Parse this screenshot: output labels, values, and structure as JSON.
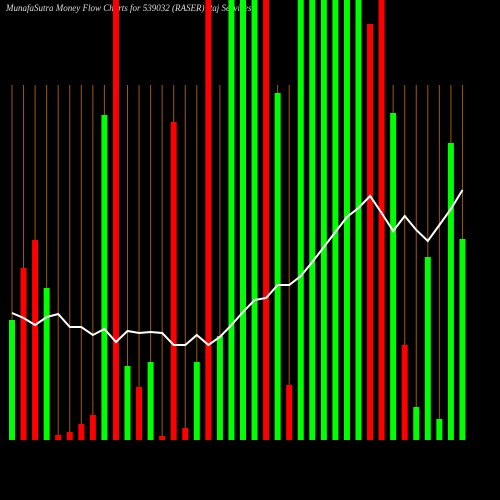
{
  "chart_data": {
    "type": "bar-line",
    "title": "MunafaSutra  Money Flow  Charts for 539032  (RASER) Raj Services",
    "ylim": [
      0,
      440
    ],
    "bar_values": [
      120,
      172,
      200,
      152,
      5,
      8,
      16,
      25,
      325,
      440,
      74,
      53,
      78,
      4,
      318,
      12,
      78,
      440,
      104,
      440,
      440,
      440,
      440,
      347,
      55,
      440,
      440,
      440,
      440,
      440,
      440,
      416,
      440,
      327,
      95,
      33,
      183,
      21,
      297,
      201
    ],
    "bar_colors": [
      "#00ff00",
      "#ff0000",
      "#ff0000",
      "#00ff00",
      "#ff0000",
      "#ff0000",
      "#ff0000",
      "#ff0000",
      "#00ff00",
      "#ff0000",
      "#00ff00",
      "#ff0000",
      "#00ff00",
      "#ff0000",
      "#ff0000",
      "#ff0000",
      "#00ff00",
      "#ff0000",
      "#00ff00",
      "#00ff00",
      "#00ff00",
      "#00ff00",
      "#ff0000",
      "#00ff00",
      "#ff0000",
      "#00ff00",
      "#00ff00",
      "#00ff00",
      "#00ff00",
      "#00ff00",
      "#00ff00",
      "#ff0000",
      "#ff0000",
      "#00ff00",
      "#ff0000",
      "#00ff00",
      "#00ff00",
      "#00ff00",
      "#00ff00",
      "#00ff00"
    ],
    "line_values": [
      127,
      122,
      115,
      123,
      126,
      113,
      113,
      105,
      111,
      98,
      109,
      107,
      108,
      107,
      95,
      95,
      105,
      95,
      103,
      115,
      128,
      140,
      142,
      155,
      155,
      164,
      178,
      193,
      208,
      223,
      232,
      244,
      227,
      209,
      224,
      210,
      199,
      215,
      231,
      250
    ],
    "line_color": "#ffffff",
    "gridline_color": "#a05a00"
  }
}
